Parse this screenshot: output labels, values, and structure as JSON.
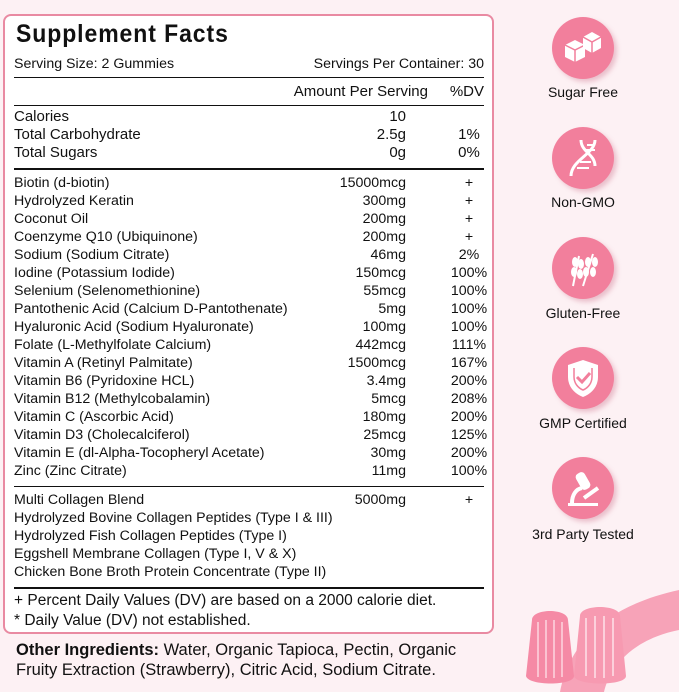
{
  "title": "Supplement Facts",
  "serving_size": "Serving Size: 2 Gummies",
  "servings_per_container": "Servings Per Container: 30",
  "header": {
    "amount": "Amount Per Serving",
    "dv": "%DV"
  },
  "basics": [
    {
      "name": "Calories",
      "amount": "10",
      "dv": ""
    },
    {
      "name": "Total Carbohydrate",
      "amount": "2.5g",
      "dv": "1%"
    },
    {
      "name": "Total Sugars",
      "amount": "0g",
      "dv": "0%"
    }
  ],
  "nutrients": [
    {
      "name": "Biotin (d-biotin)",
      "amount": "15000mcg",
      "dv": "+"
    },
    {
      "name": "Hydrolyzed Keratin",
      "amount": "300mg",
      "dv": "+"
    },
    {
      "name": "Coconut Oil",
      "amount": "200mg",
      "dv": "+"
    },
    {
      "name": "Coenzyme Q10 (Ubiquinone)",
      "amount": "200mg",
      "dv": "+"
    },
    {
      "name": "Sodium (Sodium Citrate)",
      "amount": "46mg",
      "dv": "2%"
    },
    {
      "name": "Iodine (Potassium Iodide)",
      "amount": "150mcg",
      "dv": "100%"
    },
    {
      "name": "Selenium (Selenomethionine)",
      "amount": "55mcg",
      "dv": "100%"
    },
    {
      "name": "Pantothenic Acid (Calcium D-Pantothenate)",
      "amount": "5mg",
      "dv": "100%"
    },
    {
      "name": "Hyaluronic Acid (Sodium Hyaluronate)",
      "amount": "100mg",
      "dv": "100%"
    },
    {
      "name": "Folate (L-Methylfolate Calcium)",
      "amount": "442mcg",
      "dv": "111%"
    },
    {
      "name": "Vitamin A (Retinyl Palmitate)",
      "amount": "1500mcg",
      "dv": "167%"
    },
    {
      "name": "Vitamin B6 (Pyridoxine HCL)",
      "amount": "3.4mg",
      "dv": "200%"
    },
    {
      "name": "Vitamin B12 (Methylcobalamin)",
      "amount": "5mcg",
      "dv": "208%"
    },
    {
      "name": "Vitamin C (Ascorbic Acid)",
      "amount": "180mg",
      "dv": "200%"
    },
    {
      "name": "Vitamin D3 (Cholecalciferol)",
      "amount": "25mcg",
      "dv": "125%"
    },
    {
      "name": "Vitamin E (dl-Alpha-Tocopheryl Acetate)",
      "amount": "30mg",
      "dv": "200%"
    },
    {
      "name": "Zinc (Zinc Citrate)",
      "amount": "11mg",
      "dv": "100%"
    }
  ],
  "collagen": [
    {
      "name": "Multi Collagen Blend",
      "amount": "5000mg",
      "dv": "+"
    },
    {
      "name": "Hydrolyzed Bovine Collagen Peptides (Type I & III)",
      "amount": "",
      "dv": ""
    },
    {
      "name": "Hydrolyzed Fish Collagen Peptides (Type I)",
      "amount": "",
      "dv": ""
    },
    {
      "name": "Eggshell Membrane Collagen (Type I, V & X)",
      "amount": "",
      "dv": ""
    },
    {
      "name": "Chicken Bone Broth Protein Concentrate (Type II)",
      "amount": "",
      "dv": ""
    }
  ],
  "footnotes": [
    "+ Percent Daily Values (DV) are based on a 2000 calorie diet.",
    "* Daily Value (DV) not established."
  ],
  "other_ingredients": {
    "label": "Other Ingredients:",
    "text": " Water, Organic Tapioca, Pectin, Organic Fruity Extraction (Strawberry), Citric Acid, Sodium Citrate."
  },
  "badges": [
    {
      "label": "Sugar Free",
      "icon": "sugar-cubes-icon"
    },
    {
      "label": "Non-GMO",
      "icon": "dna-icon"
    },
    {
      "label": "Gluten-Free",
      "icon": "wheat-icon"
    },
    {
      "label": "GMP Certified",
      "icon": "shield-check-icon"
    },
    {
      "label": "3rd Party Tested",
      "icon": "microscope-icon"
    }
  ],
  "colors": {
    "accent": "#f27f9c",
    "border": "#e98aa2",
    "background": "#fdf1f4"
  }
}
